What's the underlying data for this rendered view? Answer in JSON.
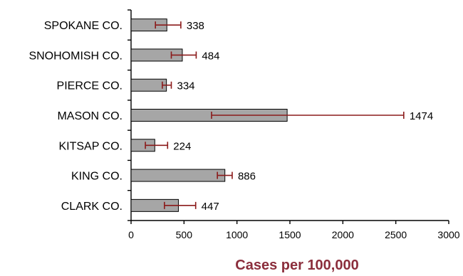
{
  "chart_data": {
    "type": "bar",
    "orientation": "horizontal",
    "title": "",
    "xlabel": "Cases per 100,000",
    "ylabel": "",
    "xlim": [
      0,
      3000
    ],
    "xticks": [
      0,
      500,
      1000,
      1500,
      2000,
      2500,
      3000
    ],
    "grid": false,
    "legend": "none",
    "categories": [
      "SPOKANE CO.",
      "SNOHOMISH CO.",
      "PIERCE CO.",
      "MASON CO.",
      "KITSAP CO.",
      "KING CO.",
      "CLARK CO."
    ],
    "values": [
      338,
      484,
      334,
      1474,
      224,
      886,
      447
    ],
    "error_low": [
      230,
      380,
      295,
      760,
      135,
      815,
      315
    ],
    "error_high": [
      470,
      615,
      380,
      2575,
      345,
      955,
      610
    ],
    "data_labels": [
      "338",
      "484",
      "334",
      "1474",
      "224",
      "886",
      "447"
    ],
    "colors": {
      "bar_fill": "#a6a6a6",
      "bar_stroke": "#000000",
      "error_bar": "#8b1a1a",
      "xlabel": "#8b2e3c"
    }
  }
}
